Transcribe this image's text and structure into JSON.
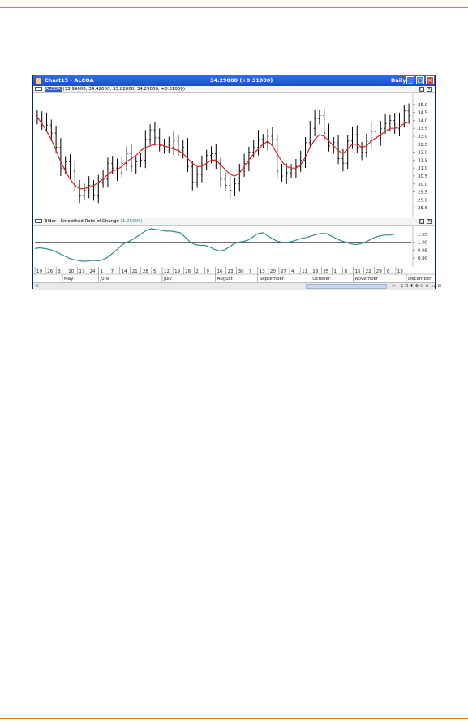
{
  "window": {
    "title": "Chart15 - ALCOA",
    "price_readout": "34.29000 (+0.31000)",
    "period": "Daily",
    "minimize_label": "_",
    "maximize_label": "□",
    "close_label": "×"
  },
  "price_pane": {
    "header_name": "ALCOA",
    "header_values": "(33.99000, 34.42000, 33.82000, 34.29000, +0.31000)",
    "close_glyph": "×",
    "restore_glyph": "□"
  },
  "indicator_pane": {
    "header_text": "Elder - Smoothed Rate of Change",
    "header_value": "(1.05000)",
    "close_glyph": "×",
    "restore_glyph": "□"
  },
  "scrollbar": {
    "left_arrow": "<",
    "right_arrow": ">",
    "tool_icons": "$ D ⬍ ✥ ⊖ ⊕ ◂ ▸ ⊞"
  },
  "colors": {
    "bars": "#000000",
    "moving_average": "#e02020",
    "indicator_line": "#2e8b8b",
    "reference_line": "#404040"
  },
  "chart_data": [
    {
      "type": "line",
      "subtype": "ohlc-bar",
      "series": [
        {
          "name": "ALCOA",
          "close": [
            34.1,
            33.9,
            33.7,
            33.2,
            32.3,
            31.0,
            31.4,
            30.8,
            29.9,
            29.3,
            29.6,
            29.9,
            29.3,
            30.1,
            30.3,
            31.3,
            31.0,
            30.7,
            31.3,
            31.9,
            31.1,
            31.4,
            31.5,
            32.8,
            33.4,
            32.9,
            32.4,
            32.5,
            32.3,
            32.7,
            32.1,
            32.3,
            31.1,
            30.1,
            30.6,
            31.2,
            31.8,
            31.9,
            31.3,
            30.3,
            29.9,
            29.6,
            30.0,
            30.8,
            31.3,
            32.0,
            32.3,
            32.8,
            32.6,
            33.0,
            32.8,
            30.8,
            30.5,
            30.7,
            30.9,
            31.1,
            31.5,
            32.6,
            33.5,
            34.1,
            34.3,
            33.2,
            32.4,
            32.6,
            31.6,
            31.3,
            32.7,
            33.1,
            32.3,
            32.0,
            32.7,
            33.3,
            32.9,
            33.5,
            33.8,
            34.0,
            33.5,
            33.9,
            34.6,
            34.29
          ]
        },
        {
          "name": "Moving average",
          "values": [
            34.2,
            33.8,
            33.3,
            32.8,
            32.1,
            31.4,
            30.8,
            30.3,
            29.9,
            29.7,
            29.7,
            29.8,
            29.9,
            30.1,
            30.3,
            30.6,
            30.8,
            30.9,
            31.1,
            31.4,
            31.6,
            31.8,
            32.1,
            32.3,
            32.4,
            32.5,
            32.5,
            32.4,
            32.3,
            32.2,
            32.1,
            31.9,
            31.6,
            31.3,
            31.1,
            31.1,
            31.3,
            31.5,
            31.5,
            31.2,
            30.9,
            30.6,
            30.5,
            30.7,
            31.1,
            31.5,
            31.9,
            32.2,
            32.5,
            32.7,
            32.4,
            31.9,
            31.4,
            31.1,
            31.0,
            31.0,
            31.2,
            31.7,
            32.3,
            32.8,
            33.1,
            33.0,
            32.7,
            32.4,
            32.1,
            31.9,
            32.2,
            32.5,
            32.5,
            32.3,
            32.4,
            32.7,
            32.9,
            33.1,
            33.3,
            33.5,
            33.5,
            33.6,
            33.8,
            33.9
          ]
        }
      ],
      "ylim": [
        28.2,
        35.4
      ],
      "y_ticks": [
        "35.0",
        "34.5",
        "34.0",
        "33.5",
        "33.0",
        "32.5",
        "32.0",
        "31.5",
        "31.0",
        "30.5",
        "30.0",
        "29.5",
        "29.0",
        "28.5"
      ],
      "grid": false
    },
    {
      "type": "line",
      "series": [
        {
          "name": "Elder - Smoothed Rate of Change",
          "values": [
            0.96,
            0.965,
            0.96,
            0.955,
            0.945,
            0.93,
            0.915,
            0.9,
            0.89,
            0.885,
            0.88,
            0.882,
            0.886,
            0.882,
            0.89,
            0.905,
            0.93,
            0.955,
            0.985,
            1.0,
            1.015,
            1.035,
            1.055,
            1.075,
            1.085,
            1.08,
            1.075,
            1.07,
            1.07,
            1.065,
            1.06,
            1.03,
            1.0,
            0.985,
            0.98,
            0.98,
            0.97,
            0.955,
            0.945,
            0.95,
            0.97,
            0.99,
            1.0,
            1.005,
            1.015,
            1.035,
            1.055,
            1.06,
            1.04,
            1.02,
            1.005,
            1.0,
            1.0,
            1.005,
            1.015,
            1.025,
            1.03,
            1.04,
            1.05,
            1.055,
            1.055,
            1.04,
            1.025,
            1.01,
            1.0,
            0.99,
            0.985,
            0.99,
            1.0,
            1.015,
            1.03,
            1.04,
            1.045,
            1.045,
            1.05
          ]
        }
      ],
      "reference_line": 1.0,
      "ylim": [
        0.86,
        1.09
      ],
      "y_ticks": [
        "1.05",
        "1.00",
        "0.95",
        "0.90"
      ],
      "x_day_labels": [
        "19",
        "26",
        "3",
        "10",
        "17",
        "24",
        "1",
        "7",
        "14",
        "21",
        "28",
        "5",
        "12",
        "19",
        "26",
        "2",
        "9",
        "16",
        "23",
        "30",
        "7",
        "13",
        "20",
        "27",
        "4",
        "11",
        "18",
        "25",
        "1",
        "8",
        "15",
        "22",
        "29",
        "6",
        "13"
      ],
      "x_month_labels": [
        "May",
        "June",
        "July",
        "August",
        "September",
        "October",
        "November",
        "December"
      ]
    }
  ]
}
